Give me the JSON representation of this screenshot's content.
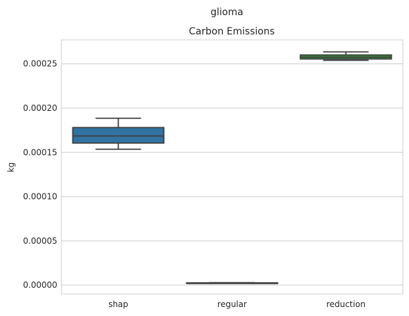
{
  "chart_data": {
    "type": "box",
    "suptitle": "glioma",
    "title": "Carbon Emissions",
    "xlabel": "",
    "ylabel": "kg",
    "ylim": [
      -1e-05,
      0.000277
    ],
    "yticks": [
      0.0,
      5e-05,
      0.0001,
      0.00015,
      0.0002,
      0.00025
    ],
    "ytick_labels": [
      "0.00000",
      "0.00005",
      "0.00010",
      "0.00015",
      "0.00020",
      "0.00025"
    ],
    "grid": "y",
    "categories": [
      "shap",
      "regular",
      "reduction"
    ],
    "boxes": [
      {
        "category": "shap",
        "whisker_low": 0.0001535,
        "q1": 0.0001605,
        "median": 0.0001685,
        "q3": 0.000178,
        "whisker_high": 0.0001885,
        "color": "#3274a1"
      },
      {
        "category": "regular",
        "whisker_low": 2.4e-06,
        "q1": 2.5e-06,
        "median": 2.5e-06,
        "q3": 2.6e-06,
        "whisker_high": 2.7e-06,
        "color": "#e1812c"
      },
      {
        "category": "reduction",
        "whisker_low": 0.000254,
        "q1": 0.0002555,
        "median": 0.0002575,
        "q3": 0.00026,
        "whisker_high": 0.0002635,
        "color": "#3a923a"
      }
    ]
  }
}
